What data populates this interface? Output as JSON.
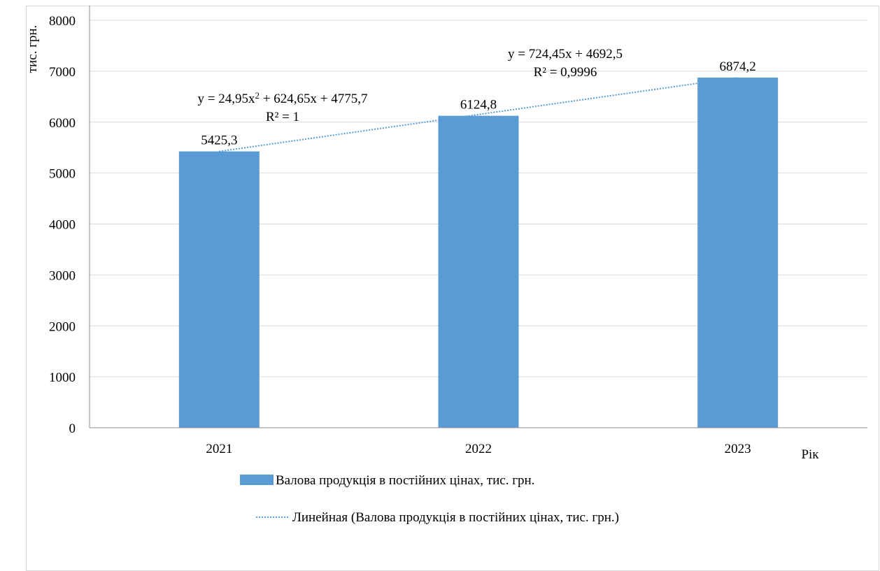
{
  "chart_data": {
    "type": "bar",
    "ylabel": "тис. грн.",
    "xlabel": "Рік",
    "categories": [
      "2021",
      "2022",
      "2023"
    ],
    "ylim": [
      0,
      8000
    ],
    "yticks": [
      "0",
      "1000",
      "2000",
      "3000",
      "4000",
      "5000",
      "6000",
      "7000",
      "8000"
    ],
    "grid": true,
    "legend_position": "bottom",
    "series": [
      {
        "name": "Валова продукція в постійних цінах, тис. грн.",
        "values": [
          5425.3,
          6124.8,
          6874.2
        ],
        "data_labels": [
          "5425,3",
          "6124,8",
          "6874,2"
        ],
        "color": "#5b9bd5"
      }
    ],
    "trendline": {
      "name": "Линейная (Валова продукція в постійних цінах, тис. грн.)",
      "style": "dotted",
      "color": "#5b9bd5",
      "from_value": 5425.3,
      "to_value": 6874.2
    },
    "annotations": {
      "eq1_prefix": "y = 24,95x",
      "eq1_sup": "2",
      "eq1_suffix": " + 624,65x + 4775,7",
      "r1": "R² = 1",
      "eq2": "y = 724,45x + 4692,5",
      "r2": "R² = 0,9996"
    }
  }
}
